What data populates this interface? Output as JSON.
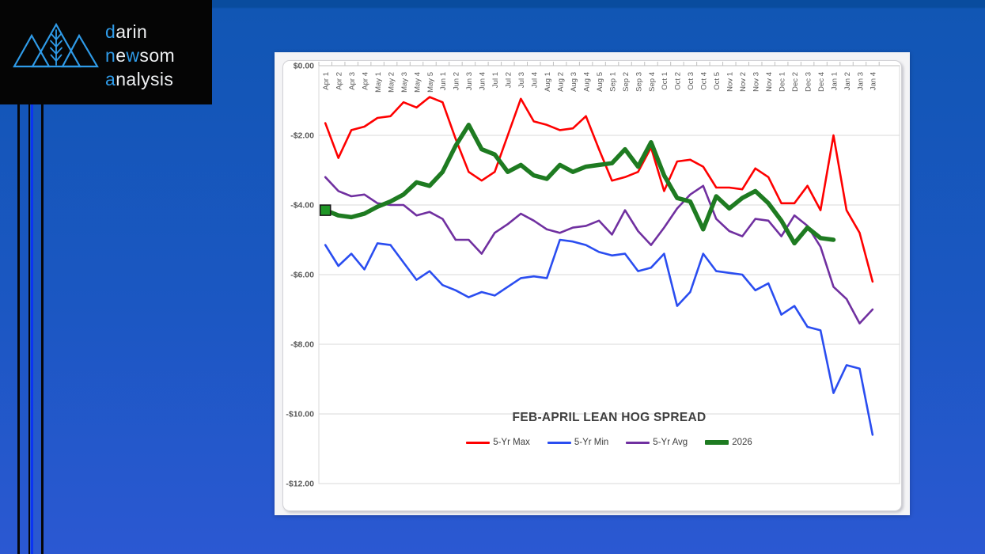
{
  "logo": {
    "l1a": "d",
    "l1b": "arin",
    "l2a": "n",
    "l2b": "e",
    "l2c": "w",
    "l2d": "som",
    "l3a": "a",
    "l3b": "nalysis",
    "brand_blue": "#2f9be8"
  },
  "chart_data": {
    "type": "line",
    "title": "FEB-APRIL LEAN HOG SPREAD",
    "categories": [
      "Apr 1",
      "Apr 2",
      "Apr 3",
      "Apr 4",
      "May 1",
      "May 2",
      "May 3",
      "May 4",
      "May 5",
      "Jun 1",
      "Jun 2",
      "Jun 3",
      "Jun 4",
      "Jul 1",
      "Jul 2",
      "Jul 3",
      "Jul 4",
      "Aug 1",
      "Aug 2",
      "Aug 3",
      "Aug 4",
      "Aug 5",
      "Sep 1",
      "Sep 2",
      "Sep 3",
      "Sep 4",
      "Oct 1",
      "Oct 2",
      "Oct 3",
      "Oct 4",
      "Oct 5",
      "Nov 1",
      "Nov 2",
      "Nov 3",
      "Nov 4",
      "Dec 1",
      "Dec 2",
      "Dec 3",
      "Dec 4",
      "Jan 1",
      "Jan 2",
      "Jan 3",
      "Jan 4"
    ],
    "y_ticks": {
      "labels": [
        "$0.00",
        "-$2.00",
        "-$4.00",
        "-$6.00",
        "-$8.00",
        "-$10.00",
        "-$12.00"
      ],
      "values": [
        0,
        -2,
        -4,
        -6,
        -8,
        -10,
        -12
      ]
    },
    "ylim": [
      -12,
      0
    ],
    "grid": "horizontal",
    "legend_position": "bottom-center",
    "series": [
      {
        "name": "5-Yr Max",
        "color": "#fe0000",
        "width": 2.6,
        "values": [
          -1.65,
          -2.65,
          -1.85,
          -1.75,
          -1.5,
          -1.45,
          -1.05,
          -1.2,
          -0.9,
          -1.05,
          -2.1,
          -3.05,
          -3.3,
          -3.05,
          -2.0,
          -0.95,
          -1.6,
          -1.7,
          -1.85,
          -1.8,
          -1.45,
          -2.4,
          -3.3,
          -3.2,
          -3.05,
          -2.35,
          -3.6,
          -2.75,
          -2.7,
          -2.9,
          -3.5,
          -3.5,
          -3.55,
          -2.95,
          -3.2,
          -3.95,
          -3.95,
          -3.45,
          -4.15,
          -2.0,
          -4.15,
          -4.8,
          -6.2
        ]
      },
      {
        "name": "5-Yr Min",
        "color": "#2a4df0",
        "width": 2.6,
        "values": [
          -5.15,
          -5.75,
          -5.4,
          -5.85,
          -5.1,
          -5.15,
          -5.65,
          -6.15,
          -5.9,
          -6.3,
          -6.45,
          -6.65,
          -6.5,
          -6.6,
          -6.35,
          -6.1,
          -6.05,
          -6.1,
          -5.0,
          -5.05,
          -5.15,
          -5.35,
          -5.45,
          -5.4,
          -5.9,
          -5.8,
          -5.4,
          -6.9,
          -6.5,
          -5.4,
          -5.9,
          -5.95,
          -6.0,
          -6.45,
          -6.25,
          -7.15,
          -6.9,
          -7.5,
          -7.6,
          -9.4,
          -8.6,
          -8.7,
          -10.6
        ]
      },
      {
        "name": "5-Yr Avg",
        "color": "#7030a0",
        "width": 2.6,
        "values": [
          -3.2,
          -3.6,
          -3.75,
          -3.7,
          -3.95,
          -4.0,
          -4.0,
          -4.3,
          -4.2,
          -4.4,
          -5.0,
          -5.0,
          -5.4,
          -4.8,
          -4.55,
          -4.25,
          -4.45,
          -4.7,
          -4.8,
          -4.65,
          -4.6,
          -4.45,
          -4.85,
          -4.15,
          -4.75,
          -5.15,
          -4.65,
          -4.1,
          -3.7,
          -3.45,
          -4.4,
          -4.75,
          -4.9,
          -4.4,
          -4.45,
          -4.9,
          -4.3,
          -4.6,
          -5.2,
          -6.35,
          -6.7,
          -7.4,
          -7.0
        ]
      },
      {
        "name": "2026",
        "color": "#1e7b21",
        "width": 5.5,
        "ends_at": "Jan 1",
        "start_marker": "square",
        "marker_color": "#1f9626",
        "values": [
          -4.15,
          -4.3,
          -4.35,
          -4.25,
          -4.05,
          -3.9,
          -3.7,
          -3.35,
          -3.45,
          -3.05,
          -2.3,
          -1.7,
          -2.4,
          -2.55,
          -3.05,
          -2.85,
          -3.15,
          -3.25,
          -2.85,
          -3.05,
          -2.9,
          -2.85,
          -2.8,
          -2.4,
          -2.9,
          -2.2,
          -3.15,
          -3.8,
          -3.9,
          -4.7,
          -3.75,
          -4.1,
          -3.8,
          -3.6,
          -3.95,
          -4.45,
          -5.1,
          -4.65,
          -4.95,
          -5.0
        ]
      }
    ]
  }
}
